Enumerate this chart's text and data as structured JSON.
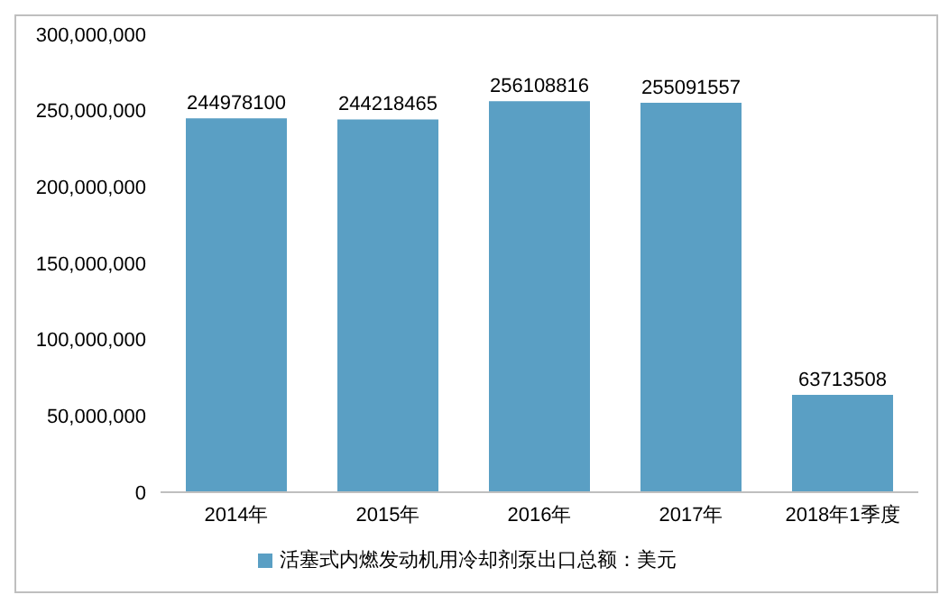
{
  "chart_data": {
    "type": "bar",
    "categories": [
      "2014年",
      "2015年",
      "2016年",
      "2017年",
      "2018年1季度"
    ],
    "series": [
      {
        "name": "活塞式内燃发动机用冷却剂泵出口总额：美元",
        "color": "#5a9fc4",
        "values": [
          244978100,
          244218465,
          256108816,
          255091557,
          63713508
        ]
      }
    ],
    "ylim": [
      0,
      300000000
    ],
    "yticks": [
      0,
      {
        "value": 50000000,
        "label": "50,000,000"
      },
      {
        "value": 100000000,
        "label": "100,000,000"
      },
      {
        "value": 150000000,
        "label": "150,000,000"
      },
      {
        "value": 200000000,
        "label": "200,000,000"
      },
      {
        "value": 250000000,
        "label": "250,000,000"
      },
      {
        "value": 300000000,
        "label": "300,000,000"
      }
    ],
    "data_labels": true,
    "grid": false,
    "legend": "bottom"
  }
}
